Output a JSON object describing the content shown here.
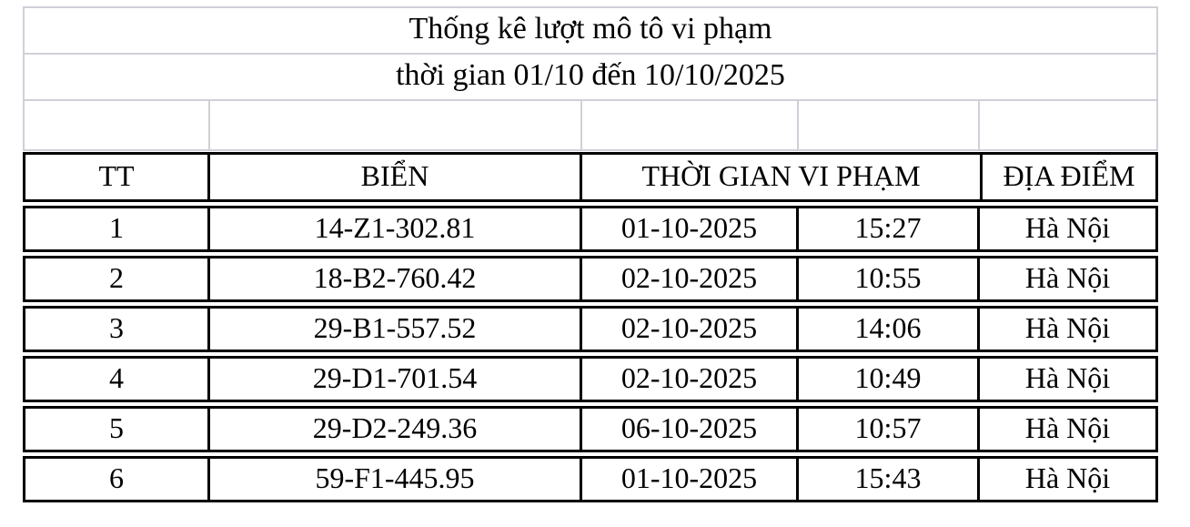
{
  "title": "Thống kê lượt mô tô vi phạm",
  "subtitle": "thời gian 01/10 đến 10/10/2025",
  "table": {
    "headers": {
      "tt": "TT",
      "bien": "BIỂN",
      "thoi_gian": "THỜI GIAN VI PHẠM",
      "dia_diem": "ĐỊA ĐIỂM"
    },
    "rows": [
      {
        "tt": "1",
        "bien": "14-Z1-302.81",
        "date": "01-10-2025",
        "time": "15:27",
        "location": "Hà Nội"
      },
      {
        "tt": "2",
        "bien": "18-B2-760.42",
        "date": "02-10-2025",
        "time": "10:55",
        "location": "Hà Nội"
      },
      {
        "tt": "3",
        "bien": "29-B1-557.52",
        "date": "02-10-2025",
        "time": "14:06",
        "location": "Hà Nội"
      },
      {
        "tt": "4",
        "bien": "29-D1-701.54",
        "date": "02-10-2025",
        "time": "10:49",
        "location": "Hà Nội"
      },
      {
        "tt": "5",
        "bien": "29-D2-249.36",
        "date": "06-10-2025",
        "time": "10:57",
        "location": "Hà Nội"
      },
      {
        "tt": "6",
        "bien": "59-F1-445.95",
        "date": "01-10-2025",
        "time": "15:43",
        "location": "Hà Nội"
      }
    ]
  },
  "colors": {
    "thick_border": "#000000",
    "thin_border": "#cfd0d9",
    "background": "#ffffff",
    "text": "#000000"
  }
}
